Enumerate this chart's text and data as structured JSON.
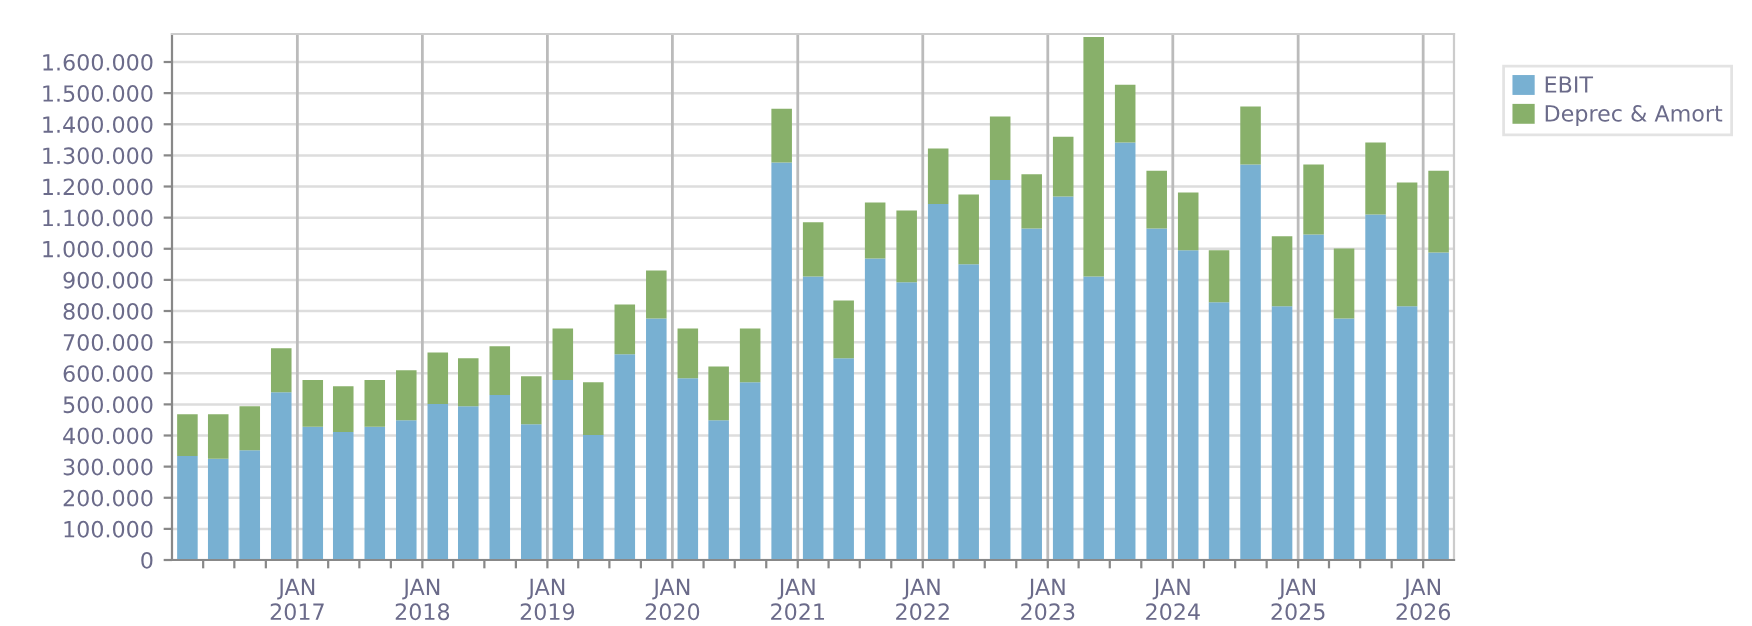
{
  "chart_data": {
    "type": "bar",
    "stacked": true,
    "x": [
      "2016-02-15",
      "2016-05-15",
      "2016-08-15",
      "2016-11-15",
      "2017-02-15",
      "2017-05-15",
      "2017-08-15",
      "2017-11-15",
      "2018-02-15",
      "2018-05-15",
      "2018-08-15",
      "2018-11-15",
      "2019-02-15",
      "2019-05-15",
      "2019-08-15",
      "2019-11-15",
      "2020-02-15",
      "2020-05-15",
      "2020-08-15",
      "2020-11-15",
      "2021-02-15",
      "2021-05-15",
      "2021-08-15",
      "2021-11-15",
      "2022-02-15",
      "2022-05-15",
      "2022-08-15",
      "2022-11-15",
      "2023-02-15",
      "2023-05-15",
      "2023-08-15",
      "2023-11-15",
      "2024-02-15",
      "2024-05-15",
      "2024-08-15",
      "2024-11-15",
      "2025-02-15",
      "2025-05-15",
      "2025-08-15",
      "2025-11-15",
      "2026-02-15"
    ],
    "series": [
      {
        "name": "EBIT",
        "color": "#78b0d2",
        "values": [
          334000,
          325000,
          353000,
          539000,
          428000,
          411000,
          428000,
          449000,
          501000,
          494000,
          530000,
          436000,
          578000,
          402000,
          661000,
          776000,
          584000,
          449000,
          571000,
          1277000,
          911000,
          648000,
          969000,
          892000,
          1144000,
          950000,
          1221000,
          1065000,
          1168000,
          911000,
          1341000,
          1065000,
          995000,
          828000,
          1271000,
          815000,
          1046000,
          776000,
          1110000,
          815000,
          988000
        ]
      },
      {
        "name": "Deprec & Amort",
        "color": "#88b06a",
        "values": [
          134000,
          143000,
          141000,
          141000,
          150000,
          147000,
          150000,
          161000,
          166000,
          154000,
          157000,
          154000,
          166000,
          169000,
          160000,
          154000,
          160000,
          173000,
          173000,
          173000,
          174000,
          186000,
          180000,
          231000,
          178000,
          224000,
          204000,
          174000,
          192000,
          769000,
          186000,
          186000,
          186000,
          167000,
          186000,
          225000,
          225000,
          225000,
          231000,
          398000,
          263000
        ]
      }
    ],
    "xlim": [
      "2016-01-01",
      "2026-04-01"
    ],
    "xticks": [
      {
        "value": "2016-04-01",
        "label": null
      },
      {
        "value": "2016-07-01",
        "label": null
      },
      {
        "value": "2016-10-01",
        "label": null
      },
      {
        "value": "2017-01-01",
        "label": "JAN\n2017"
      },
      {
        "value": "2017-04-01",
        "label": null
      },
      {
        "value": "2017-07-01",
        "label": null
      },
      {
        "value": "2017-10-01",
        "label": null
      },
      {
        "value": "2018-01-01",
        "label": "JAN\n2018"
      },
      {
        "value": "2018-04-01",
        "label": null
      },
      {
        "value": "2018-07-01",
        "label": null
      },
      {
        "value": "2018-10-01",
        "label": null
      },
      {
        "value": "2019-01-01",
        "label": "JAN\n2019"
      },
      {
        "value": "2019-04-01",
        "label": null
      },
      {
        "value": "2019-07-01",
        "label": null
      },
      {
        "value": "2019-10-01",
        "label": null
      },
      {
        "value": "2020-01-01",
        "label": "JAN\n2020"
      },
      {
        "value": "2020-04-01",
        "label": null
      },
      {
        "value": "2020-07-01",
        "label": null
      },
      {
        "value": "2020-10-01",
        "label": null
      },
      {
        "value": "2021-01-01",
        "label": "JAN\n2021"
      },
      {
        "value": "2021-04-01",
        "label": null
      },
      {
        "value": "2021-07-01",
        "label": null
      },
      {
        "value": "2021-10-01",
        "label": null
      },
      {
        "value": "2022-01-01",
        "label": "JAN\n2022"
      },
      {
        "value": "2022-04-01",
        "label": null
      },
      {
        "value": "2022-07-01",
        "label": null
      },
      {
        "value": "2022-10-01",
        "label": null
      },
      {
        "value": "2023-01-01",
        "label": "JAN\n2023"
      },
      {
        "value": "2023-04-01",
        "label": null
      },
      {
        "value": "2023-07-01",
        "label": null
      },
      {
        "value": "2023-10-01",
        "label": null
      },
      {
        "value": "2024-01-01",
        "label": "JAN\n2024"
      },
      {
        "value": "2024-04-01",
        "label": null
      },
      {
        "value": "2024-07-01",
        "label": null
      },
      {
        "value": "2024-10-01",
        "label": null
      },
      {
        "value": "2025-01-01",
        "label": "JAN\n2025"
      },
      {
        "value": "2025-04-01",
        "label": null
      },
      {
        "value": "2025-07-01",
        "label": null
      },
      {
        "value": "2025-10-01",
        "label": null
      },
      {
        "value": "2026-01-01",
        "label": "JAN\n2026"
      }
    ],
    "ylim": [
      0,
      1690000
    ],
    "yticks": [
      0,
      {
        "value": 100000,
        "label": "100.000"
      },
      {
        "value": 200000,
        "label": "200.000"
      },
      {
        "value": 300000,
        "label": "300.000"
      },
      {
        "value": 400000,
        "label": "400.000"
      },
      {
        "value": 500000,
        "label": "500.000"
      },
      {
        "value": 600000,
        "label": "600.000"
      },
      {
        "value": 700000,
        "label": "700.000"
      },
      {
        "value": 800000,
        "label": "800.000"
      },
      {
        "value": 900000,
        "label": "900.000"
      },
      {
        "value": 1000000,
        "label": "1.000.000"
      },
      {
        "value": 1100000,
        "label": "1.100.000"
      },
      {
        "value": 1200000,
        "label": "1.200.000"
      },
      {
        "value": 1300000,
        "label": "1.300.000"
      },
      {
        "value": 1400000,
        "label": "1.400.000"
      },
      {
        "value": 1500000,
        "label": "1.500.000"
      },
      {
        "value": 1600000,
        "label": "1.600.000"
      }
    ],
    "grid": true,
    "legend": "right"
  }
}
